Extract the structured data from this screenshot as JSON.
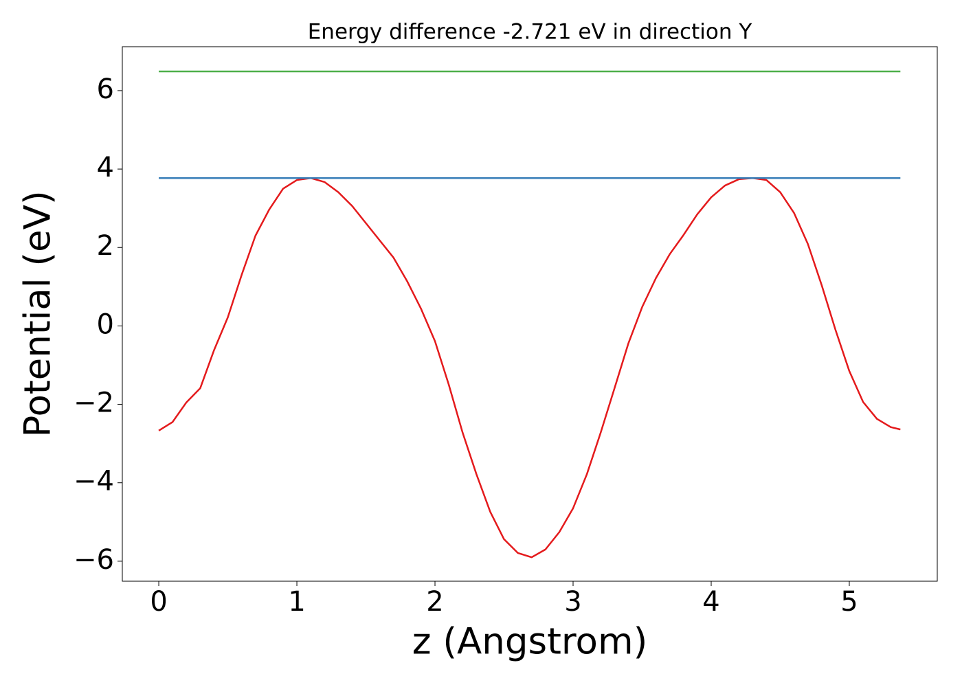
{
  "chart_data": {
    "type": "line",
    "title": "Energy difference -2.721 eV in direction Y",
    "xlabel": "z (Angstrom)",
    "ylabel": "Potential (eV)",
    "x": [
      0,
      0.1,
      0.2,
      0.3,
      0.4,
      0.5,
      0.6,
      0.7,
      0.8,
      0.9,
      1.0,
      1.1,
      1.2,
      1.3,
      1.4,
      1.5,
      1.6,
      1.7,
      1.8,
      1.9,
      2.0,
      2.1,
      2.2,
      2.3,
      2.4,
      2.5,
      2.6,
      2.7,
      2.8,
      2.9,
      3.0,
      3.1,
      3.2,
      3.3,
      3.4,
      3.5,
      3.6,
      3.7,
      3.8,
      3.9,
      4.0,
      4.1,
      4.2,
      4.3,
      4.4,
      4.5,
      4.6,
      4.7,
      4.8,
      4.9,
      5.0,
      5.1,
      5.2,
      5.3,
      5.37
    ],
    "series": [
      {
        "color": "#e41a1c",
        "values": [
          -2.67,
          -2.45,
          -1.95,
          -1.59,
          -0.62,
          0.22,
          1.3,
          2.3,
          2.97,
          3.5,
          3.72,
          3.77,
          3.67,
          3.41,
          3.06,
          2.62,
          2.18,
          1.74,
          1.13,
          0.43,
          -0.39,
          -1.5,
          -2.72,
          -3.78,
          -4.74,
          -5.44,
          -5.79,
          -5.9,
          -5.7,
          -5.26,
          -4.65,
          -3.78,
          -2.72,
          -1.59,
          -0.45,
          0.48,
          1.22,
          1.83,
          2.32,
          2.85,
          3.28,
          3.58,
          3.74,
          3.77,
          3.72,
          3.41,
          2.88,
          2.09,
          1.04,
          -0.1,
          -1.15,
          -1.94,
          -2.37,
          -2.58,
          -2.64
        ]
      },
      {
        "color": "#377eb8",
        "values": [
          3.77,
          3.77,
          3.77,
          3.77,
          3.77,
          3.77,
          3.77,
          3.77,
          3.77,
          3.77,
          3.77,
          3.77,
          3.77,
          3.77,
          3.77,
          3.77,
          3.77,
          3.77,
          3.77,
          3.77,
          3.77,
          3.77,
          3.77,
          3.77,
          3.77,
          3.77,
          3.77,
          3.77,
          3.77,
          3.77,
          3.77,
          3.77,
          3.77,
          3.77,
          3.77,
          3.77,
          3.77,
          3.77,
          3.77,
          3.77,
          3.77,
          3.77,
          3.77,
          3.77,
          3.77,
          3.77,
          3.77,
          3.77,
          3.77,
          3.77,
          3.77,
          3.77,
          3.77,
          3.77,
          3.77
        ]
      },
      {
        "color": "#4daf4a",
        "values": [
          6.49,
          6.49,
          6.49,
          6.49,
          6.49,
          6.49,
          6.49,
          6.49,
          6.49,
          6.49,
          6.49,
          6.49,
          6.49,
          6.49,
          6.49,
          6.49,
          6.49,
          6.49,
          6.49,
          6.49,
          6.49,
          6.49,
          6.49,
          6.49,
          6.49,
          6.49,
          6.49,
          6.49,
          6.49,
          6.49,
          6.49,
          6.49,
          6.49,
          6.49,
          6.49,
          6.49,
          6.49,
          6.49,
          6.49,
          6.49,
          6.49,
          6.49,
          6.49,
          6.49,
          6.49,
          6.49,
          6.49,
          6.49,
          6.49,
          6.49,
          6.49,
          6.49,
          6.49,
          6.49,
          6.49
        ]
      }
    ],
    "xlim": [
      -0.264,
      5.637
    ],
    "xticks": [
      0,
      1,
      2,
      3,
      4,
      5
    ],
    "ylim": [
      -6.51,
      7.12
    ],
    "yticks": [
      {
        "value": -6,
        "label": "−6"
      },
      {
        "value": -4,
        "label": "−4"
      },
      {
        "value": -2,
        "label": "−2"
      },
      0,
      2,
      4,
      6
    ],
    "grid": false
  }
}
